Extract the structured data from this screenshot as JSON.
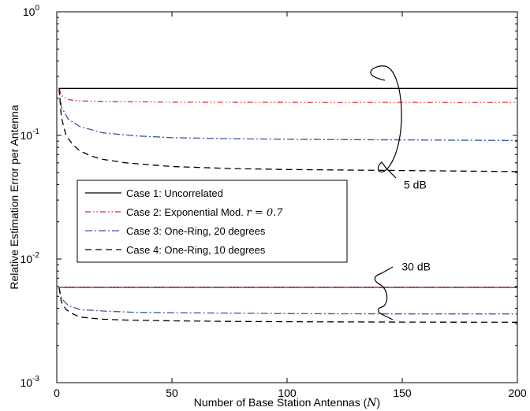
{
  "chart_data": {
    "type": "line",
    "xlabel": "Number of Base Station Antennas (N)",
    "ylabel": "Relative Estimation Error per Antenna",
    "xlim": [
      0,
      200
    ],
    "ylim": [
      0.001,
      1
    ],
    "yscale": "log",
    "xticks": [
      0,
      50,
      100,
      150,
      200
    ],
    "xtick_labels": [
      "0",
      "50",
      "100",
      "150",
      "200"
    ],
    "yticks": [
      0.001,
      0.01,
      0.1,
      1
    ],
    "ytick_labels": [
      {
        "base": "10",
        "exp": "-3"
      },
      {
        "base": "10",
        "exp": "-2"
      },
      {
        "base": "10",
        "exp": "-1"
      },
      {
        "base": "10",
        "exp": "0"
      }
    ],
    "grid": false,
    "legend_position": "center-left",
    "legend": [
      {
        "label": "Case 1: Uncorrelated",
        "math": "",
        "color": "#000000",
        "dash": ""
      },
      {
        "label": "Case 2: Exponential Mod. ",
        "math": "r = 0.7",
        "color": "#e0242b",
        "dash": "7,3,1.5,3,1.5,3"
      },
      {
        "label": "Case 3: One-Ring, 20 degrees",
        "math": "",
        "color": "#3a56a6",
        "dash": "9,3,2,3"
      },
      {
        "label": "Case 4: One-Ring, 10 degrees",
        "math": "",
        "color": "#000000",
        "dash": "8,5"
      }
    ],
    "series": [
      {
        "group": "5 dB",
        "case": 1,
        "x": [
          1,
          200
        ],
        "y": [
          0.24,
          0.24
        ]
      },
      {
        "group": "5 dB",
        "case": 2,
        "x": [
          1,
          2,
          5,
          10,
          25,
          50,
          100,
          150,
          200
        ],
        "y": [
          0.24,
          0.21,
          0.195,
          0.19,
          0.188,
          0.186,
          0.185,
          0.185,
          0.185
        ]
      },
      {
        "group": "5 dB",
        "case": 3,
        "x": [
          1,
          2,
          5,
          10,
          20,
          35,
          50,
          75,
          100,
          150,
          200
        ],
        "y": [
          0.24,
          0.17,
          0.135,
          0.118,
          0.105,
          0.099,
          0.096,
          0.094,
          0.093,
          0.092,
          0.091
        ]
      },
      {
        "group": "5 dB",
        "case": 4,
        "x": [
          1,
          2,
          4,
          7,
          10,
          15,
          20,
          30,
          50,
          75,
          100,
          150,
          200
        ],
        "y": [
          0.24,
          0.14,
          0.1,
          0.084,
          0.075,
          0.068,
          0.064,
          0.06,
          0.056,
          0.054,
          0.053,
          0.052,
          0.051
        ]
      },
      {
        "group": "30 dB",
        "case": 1,
        "x": [
          1,
          200
        ],
        "y": [
          0.0059,
          0.0059
        ]
      },
      {
        "group": "30 dB",
        "case": 2,
        "x": [
          1,
          200
        ],
        "y": [
          0.0059,
          0.0059
        ]
      },
      {
        "group": "30 dB",
        "case": 3,
        "x": [
          1,
          2,
          5,
          10,
          20,
          35,
          50,
          75,
          100,
          150,
          200
        ],
        "y": [
          0.0059,
          0.0048,
          0.0042,
          0.0039,
          0.0038,
          0.0037,
          0.00368,
          0.00365,
          0.00362,
          0.0036,
          0.0036
        ]
      },
      {
        "group": "30 dB",
        "case": 4,
        "x": [
          1,
          2,
          4,
          7,
          10,
          15,
          20,
          30,
          50,
          75,
          100,
          150,
          200
        ],
        "y": [
          0.0059,
          0.0045,
          0.0039,
          0.0036,
          0.0034,
          0.00332,
          0.00326,
          0.00321,
          0.00316,
          0.00313,
          0.00311,
          0.00309,
          0.00308
        ]
      }
    ],
    "annotations": [
      {
        "label": "5 dB",
        "x": 150,
        "y": 0.04
      },
      {
        "label": "30 dB",
        "x": 145,
        "y": 0.0072
      }
    ]
  }
}
